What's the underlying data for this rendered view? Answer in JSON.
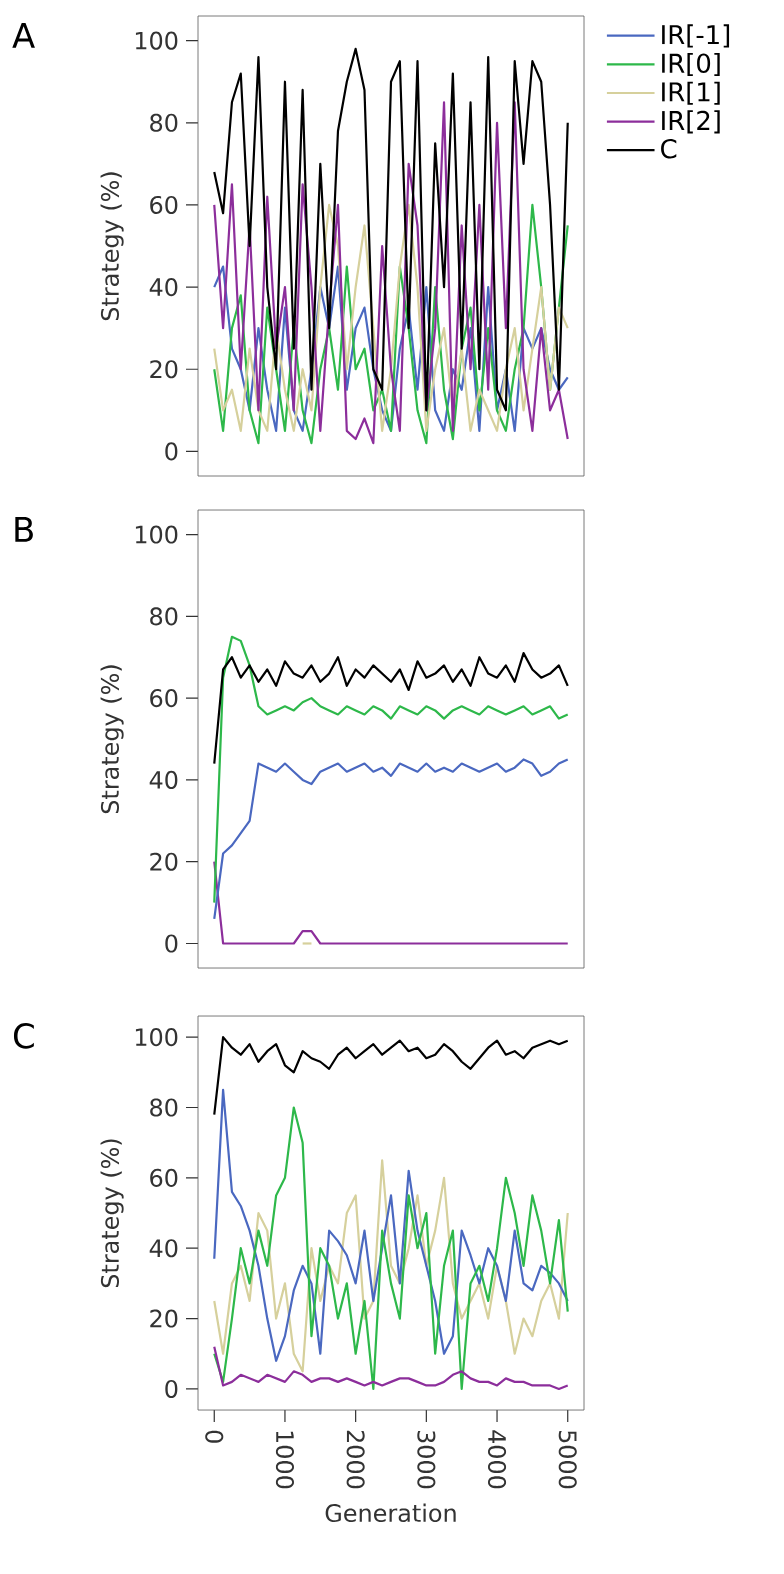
{
  "chart_data": [
    {
      "type": "line",
      "title": "A",
      "ylabel": "Strategy (%)",
      "xlim": [
        -230,
        5230
      ],
      "ylim": [
        -6,
        106
      ],
      "yticks": [
        0,
        20,
        40,
        60,
        80,
        100
      ],
      "tick_labels": "y",
      "legend": "right",
      "x": [
        0,
        125,
        250,
        375,
        500,
        625,
        750,
        875,
        1000,
        1125,
        1250,
        1375,
        1500,
        1625,
        1750,
        1875,
        2000,
        2125,
        2250,
        2375,
        2500,
        2625,
        2750,
        2875,
        3000,
        3125,
        3250,
        3375,
        3500,
        3625,
        3750,
        3875,
        4000,
        4125,
        4250,
        4375,
        4500,
        4625,
        4750,
        4875,
        5000
      ],
      "series": [
        {
          "name": "IR[-1]",
          "color": "#4a68c0",
          "values": [
            40,
            45,
            25,
            20,
            10,
            30,
            15,
            5,
            35,
            10,
            5,
            20,
            40,
            30,
            45,
            15,
            30,
            35,
            20,
            10,
            5,
            25,
            35,
            15,
            40,
            10,
            5,
            20,
            15,
            30,
            5,
            40,
            10,
            20,
            5,
            30,
            25,
            30,
            20,
            15,
            18
          ]
        },
        {
          "name": "IR[0]",
          "color": "#2db84a",
          "values": [
            20,
            5,
            30,
            38,
            10,
            2,
            35,
            20,
            5,
            30,
            10,
            2,
            20,
            30,
            15,
            45,
            20,
            25,
            10,
            15,
            5,
            45,
            30,
            10,
            2,
            40,
            15,
            3,
            25,
            35,
            10,
            30,
            10,
            5,
            20,
            30,
            60,
            40,
            15,
            35,
            55
          ]
        },
        {
          "name": "IR[1]",
          "color": "#d6d09c",
          "values": [
            25,
            10,
            15,
            5,
            25,
            10,
            5,
            30,
            15,
            5,
            20,
            10,
            40,
            60,
            50,
            20,
            40,
            55,
            30,
            5,
            20,
            45,
            60,
            40,
            5,
            20,
            30,
            10,
            25,
            5,
            15,
            10,
            5,
            20,
            30,
            10,
            25,
            40,
            15,
            35,
            30
          ]
        },
        {
          "name": "IR[2]",
          "color": "#8c2e9b",
          "values": [
            60,
            30,
            65,
            20,
            55,
            10,
            62,
            25,
            40,
            10,
            65,
            40,
            5,
            35,
            60,
            5,
            3,
            8,
            2,
            50,
            20,
            5,
            70,
            55,
            10,
            30,
            85,
            5,
            55,
            20,
            60,
            15,
            80,
            30,
            85,
            20,
            5,
            30,
            10,
            15,
            3
          ]
        },
        {
          "name": "C",
          "color": "#000000",
          "values": [
            68,
            58,
            85,
            92,
            50,
            96,
            40,
            20,
            90,
            25,
            88,
            15,
            70,
            30,
            78,
            90,
            98,
            88,
            20,
            15,
            90,
            95,
            30,
            95,
            10,
            75,
            40,
            92,
            25,
            85,
            20,
            96,
            15,
            10,
            95,
            70,
            95,
            90,
            60,
            15,
            80
          ]
        }
      ]
    },
    {
      "type": "line",
      "title": "B",
      "ylabel": "Strategy (%)",
      "xlim": [
        -230,
        5230
      ],
      "ylim": [
        -6,
        106
      ],
      "yticks": [
        0,
        20,
        40,
        60,
        80,
        100
      ],
      "tick_labels": "y",
      "x": [
        0,
        125,
        250,
        375,
        500,
        625,
        750,
        875,
        1000,
        1125,
        1250,
        1375,
        1500,
        1625,
        1750,
        1875,
        2000,
        2125,
        2250,
        2375,
        2500,
        2625,
        2750,
        2875,
        3000,
        3125,
        3250,
        3375,
        3500,
        3625,
        3750,
        3875,
        4000,
        4125,
        4250,
        4375,
        4500,
        4625,
        4750,
        4875,
        5000
      ],
      "series": [
        {
          "color": "#d6d09c",
          "values": [
            null,
            null,
            null,
            null,
            null,
            null,
            null,
            null,
            null,
            null,
            0,
            0,
            null,
            null,
            null,
            null,
            null,
            null,
            null,
            null,
            null,
            null,
            null,
            null,
            null,
            null,
            null,
            null,
            null,
            null,
            null,
            null,
            null,
            null,
            null,
            null,
            null,
            null,
            null,
            null,
            null
          ]
        },
        {
          "color": "#8c2e9b",
          "values": [
            20,
            0,
            0,
            0,
            0,
            0,
            0,
            0,
            0,
            0,
            3,
            3,
            0,
            0,
            0,
            0,
            0,
            0,
            0,
            0,
            0,
            0,
            0,
            0,
            0,
            0,
            0,
            0,
            0,
            0,
            0,
            0,
            0,
            0,
            0,
            0,
            0,
            0,
            0,
            0,
            0
          ]
        },
        {
          "color": "#4a68c0",
          "values": [
            6,
            22,
            24,
            27,
            30,
            44,
            43,
            42,
            44,
            42,
            40,
            39,
            42,
            43,
            44,
            42,
            43,
            44,
            42,
            43,
            41,
            44,
            43,
            42,
            44,
            42,
            43,
            42,
            44,
            43,
            42,
            43,
            44,
            42,
            43,
            45,
            44,
            41,
            42,
            44,
            45
          ]
        },
        {
          "color": "#2db84a",
          "values": [
            10,
            65,
            75,
            74,
            68,
            58,
            56,
            57,
            58,
            57,
            59,
            60,
            58,
            57,
            56,
            58,
            57,
            56,
            58,
            57,
            55,
            58,
            57,
            56,
            58,
            57,
            55,
            57,
            58,
            57,
            56,
            58,
            57,
            56,
            57,
            58,
            56,
            57,
            58,
            55,
            56
          ]
        },
        {
          "color": "#000000",
          "values": [
            44,
            67,
            70,
            65,
            68,
            64,
            67,
            63,
            69,
            66,
            65,
            68,
            64,
            66,
            70,
            63,
            67,
            65,
            68,
            66,
            64,
            67,
            62,
            69,
            65,
            66,
            68,
            64,
            67,
            63,
            70,
            66,
            65,
            68,
            64,
            71,
            67,
            65,
            66,
            68,
            63
          ]
        }
      ]
    },
    {
      "type": "line",
      "title": "C",
      "xlabel": "Generation",
      "ylabel": "Strategy (%)",
      "xlim": [
        -230,
        5230
      ],
      "ylim": [
        -6,
        106
      ],
      "xticks": [
        0,
        1000,
        2000,
        3000,
        4000,
        5000
      ],
      "yticks": [
        0,
        20,
        40,
        60,
        80,
        100
      ],
      "x": [
        0,
        125,
        250,
        375,
        500,
        625,
        750,
        875,
        1000,
        1125,
        1250,
        1375,
        1500,
        1625,
        1750,
        1875,
        2000,
        2125,
        2250,
        2375,
        2500,
        2625,
        2750,
        2875,
        3000,
        3125,
        3250,
        3375,
        3500,
        3625,
        3750,
        3875,
        4000,
        4125,
        4250,
        4375,
        4500,
        4625,
        4750,
        4875,
        5000
      ],
      "series": [
        {
          "color": "#d6d09c",
          "values": [
            25,
            10,
            30,
            35,
            25,
            50,
            45,
            20,
            30,
            10,
            5,
            40,
            25,
            35,
            30,
            50,
            55,
            20,
            25,
            65,
            35,
            30,
            40,
            55,
            35,
            45,
            60,
            30,
            20,
            25,
            30,
            20,
            35,
            25,
            10,
            20,
            15,
            25,
            30,
            20,
            50
          ]
        },
        {
          "color": "#4a68c0",
          "values": [
            37,
            85,
            56,
            52,
            45,
            35,
            20,
            8,
            15,
            28,
            35,
            30,
            10,
            45,
            42,
            38,
            30,
            45,
            25,
            40,
            55,
            30,
            62,
            45,
            35,
            25,
            10,
            15,
            45,
            38,
            30,
            40,
            35,
            25,
            45,
            30,
            28,
            35,
            33,
            30,
            25
          ]
        },
        {
          "color": "#2db84a",
          "values": [
            10,
            2,
            20,
            40,
            30,
            45,
            35,
            55,
            60,
            80,
            70,
            15,
            40,
            35,
            20,
            30,
            10,
            25,
            0,
            45,
            30,
            20,
            55,
            40,
            50,
            10,
            35,
            45,
            0,
            30,
            35,
            25,
            40,
            60,
            50,
            35,
            55,
            45,
            30,
            48,
            22
          ]
        },
        {
          "color": "#8c2e9b",
          "values": [
            12,
            1,
            2,
            4,
            3,
            2,
            4,
            3,
            2,
            5,
            4,
            2,
            3,
            3,
            2,
            3,
            2,
            1,
            2,
            1,
            2,
            3,
            3,
            2,
            1,
            1,
            2,
            4,
            5,
            3,
            2,
            2,
            1,
            3,
            2,
            2,
            1,
            1,
            1,
            0,
            1
          ]
        },
        {
          "color": "#000000",
          "values": [
            78,
            100,
            97,
            95,
            98,
            93,
            96,
            98,
            92,
            90,
            96,
            94,
            93,
            91,
            95,
            97,
            94,
            96,
            98,
            95,
            97,
            99,
            96,
            97,
            94,
            95,
            98,
            96,
            93,
            91,
            94,
            97,
            99,
            95,
            96,
            94,
            97,
            98,
            99,
            98,
            99
          ]
        }
      ]
    }
  ]
}
